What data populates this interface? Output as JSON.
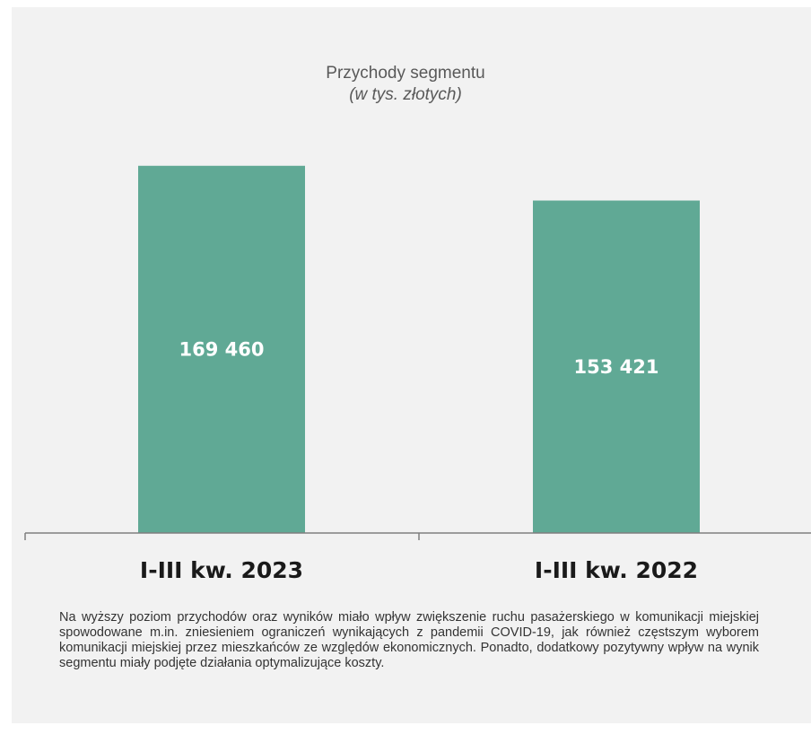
{
  "chart_data": {
    "type": "bar",
    "title": "Przychody segmentu",
    "subtitle": "(w tys. złotych)",
    "categories": [
      "I-III kw. 2023",
      "I-III kw. 2022"
    ],
    "values": [
      169460,
      153421
    ],
    "value_labels": [
      "169 460",
      "153 421"
    ],
    "ylim": [
      0,
      188000
    ],
    "grid": false,
    "legend": "none"
  },
  "colors": {
    "bar": "#60a995",
    "panel": "#f2f2f2",
    "axis": "#7f7f7f"
  },
  "description": "Na wyższy poziom przychodów oraz wyników miało wpływ zwiększenie ruchu pasażerskiego w komunikacji miejskiej spowodowane m.in. zniesieniem ograniczeń wynikających z pandemii COVID-19, jak również częstszym wyborem komunikacji miejskiej przez mieszkańców ze względów ekonomicznych. Ponadto, dodatkowy pozytywny wpływ na wynik segmentu miały podjęte działania optymalizujące koszty."
}
